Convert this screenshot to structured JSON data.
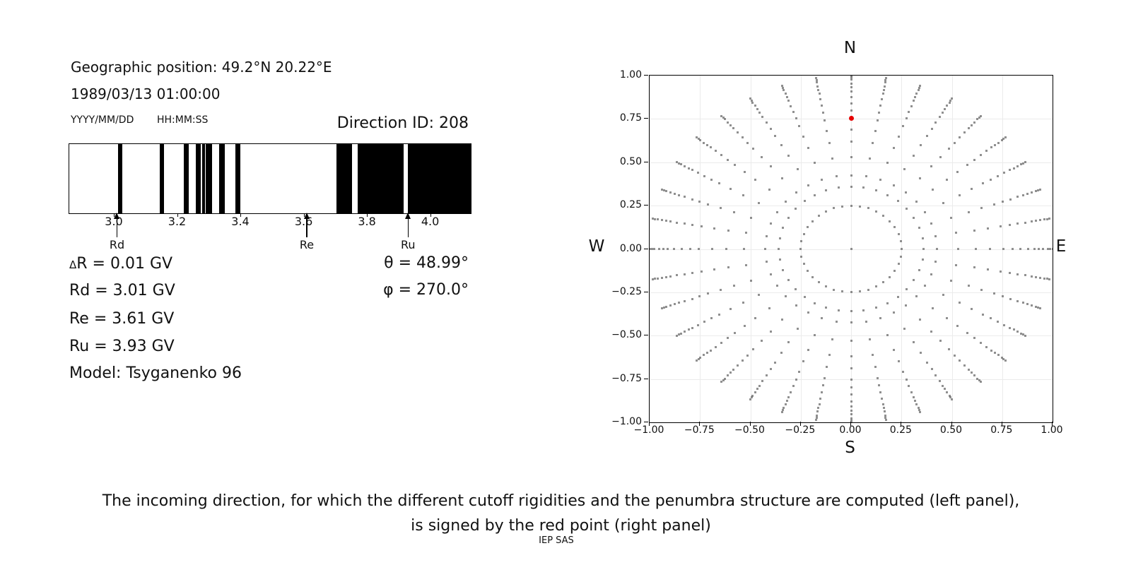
{
  "left_panel": {
    "geo_position": "Geographic position: 49.2°N 20.22°E",
    "datetime": "1989/03/13 01:00:00",
    "date_format_label": "YYYY/MM/DD",
    "time_format_label": "HH:MM:SS",
    "direction_id": "Direction ID: 208",
    "info_rows": [
      {
        "prefix": "Δ",
        "text": "R = 0.01 GV"
      },
      {
        "prefix": "",
        "text": "Rd = 3.01 GV"
      },
      {
        "prefix": "",
        "text": "Re = 3.61 GV"
      },
      {
        "prefix": "",
        "text": "Ru = 3.93 GV"
      },
      {
        "prefix": "",
        "text": "Model: Tsyganenko 96"
      }
    ],
    "angle_rows": [
      "θ = 48.99°",
      "φ = 270.0°"
    ]
  },
  "chart_data": [
    {
      "type": "penumbra-band-plot",
      "description": "Penumbra structure: black bands are forbidden rigidity intervals (GV)",
      "x_axis": {
        "min": 2.857,
        "max": 4.126,
        "ticks": [
          3.0,
          3.2,
          3.4,
          3.6,
          3.8,
          4.0
        ],
        "tick_labels": [
          "3.0",
          "3.2",
          "3.4",
          "3.6",
          "3.8",
          "4.0"
        ]
      },
      "band_color": "#000000",
      "forbidden_bands_gv": [
        [
          3.01,
          3.024
        ],
        [
          3.143,
          3.157
        ],
        [
          3.219,
          3.235
        ],
        [
          3.256,
          3.272
        ],
        [
          3.278,
          3.286
        ],
        [
          3.289,
          3.308
        ],
        [
          3.33,
          3.349
        ],
        [
          3.383,
          3.397
        ],
        [
          3.702,
          3.75
        ],
        [
          3.768,
          3.913
        ],
        [
          3.927,
          4.126
        ]
      ],
      "markers": [
        {
          "label": "Rd",
          "value_gv": 3.01
        },
        {
          "label": "Re",
          "value_gv": 3.61
        },
        {
          "label": "Ru",
          "value_gv": 3.93
        }
      ]
    },
    {
      "type": "scatter",
      "description": "Grid of incoming directions; radius = sin(zenith angle), azimuth every 10 degrees",
      "xlim": [
        -1,
        1
      ],
      "ylim": [
        -1,
        1
      ],
      "grid": true,
      "x_ticks": [
        -1,
        -0.75,
        -0.5,
        -0.25,
        0,
        0.25,
        0.5,
        0.75,
        1
      ],
      "x_tick_labels": [
        "−1.00",
        "−0.75",
        "−0.50",
        "−0.25",
        "0.00",
        "0.25",
        "0.50",
        "0.75",
        "1.00"
      ],
      "y_ticks": [
        1,
        0.75,
        0.5,
        0.25,
        0,
        -0.25,
        -0.5,
        -0.75,
        -1
      ],
      "y_tick_labels": [
        "1.00",
        "0.75",
        "0.50",
        "0.25",
        "0.00",
        "−0.25",
        "−0.50",
        "−0.75",
        "−1.00"
      ],
      "compass_labels": {
        "top": "N",
        "bottom": "S",
        "left": "W",
        "right": "E"
      },
      "direction_grid": {
        "azimuth_start_deg": 0,
        "azimuth_step_deg": 10,
        "azimuth_count": 36,
        "ring_radii": [
          0.25,
          0.36,
          0.425,
          0.53,
          0.62,
          0.69,
          0.755,
          0.8,
          0.84,
          0.878,
          0.91,
          0.932,
          0.953,
          0.976,
          0.988,
          1.0
        ],
        "center_point": true,
        "dot_color": "#8f8f8f"
      },
      "selected_direction": {
        "x": 0.0,
        "y": 0.755,
        "theta_deg": 48.99,
        "phi_deg": 270.0,
        "color": "#e60000"
      }
    }
  ],
  "caption": {
    "line1": "The incoming direction, for which the different cutoff rigidities and the penumbra structure are computed (left panel),",
    "line2": "is signed by the red point (right panel)"
  },
  "credit": "IEP SAS"
}
